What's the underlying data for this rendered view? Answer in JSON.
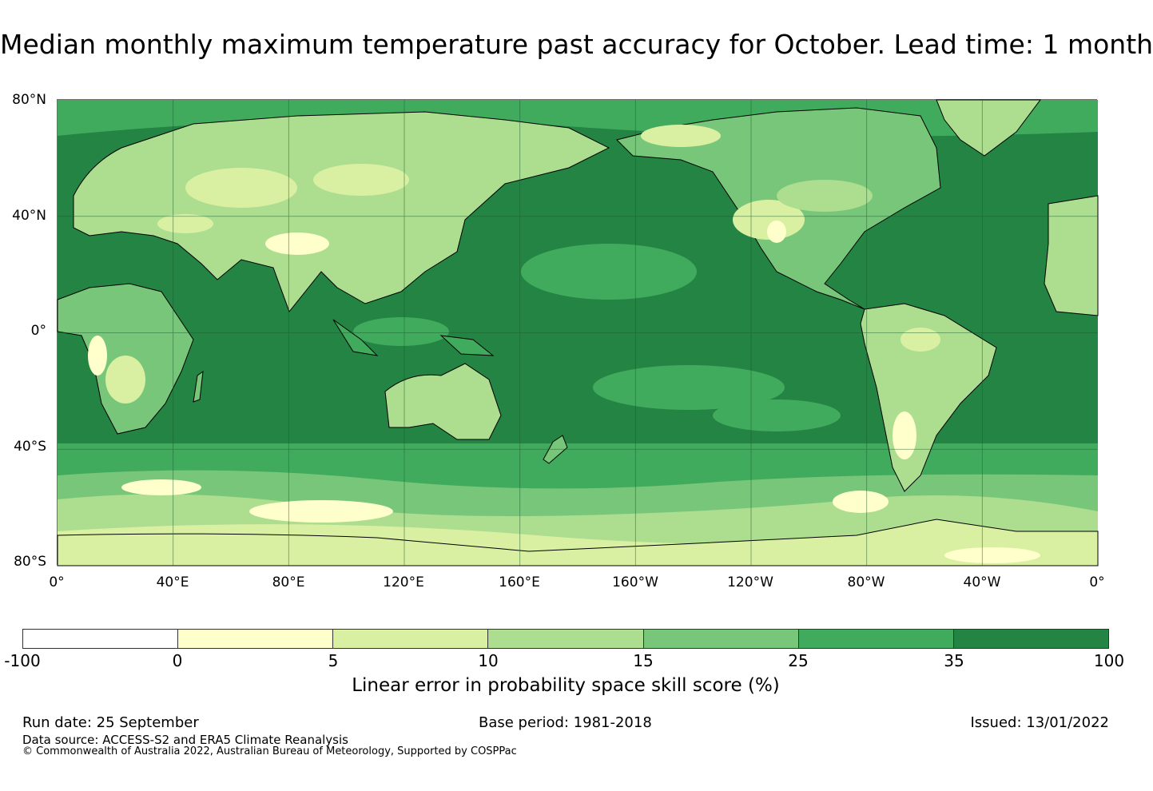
{
  "title": "Median monthly maximum temperature past accuracy for October. Lead time: 1 month",
  "map": {
    "latitude_labels": [
      "80°N",
      "40°N",
      "0°",
      "40°S",
      "80°S"
    ],
    "longitude_labels": [
      "0°",
      "40°E",
      "80°E",
      "120°E",
      "160°E",
      "160°W",
      "120°W",
      "80°W",
      "40°W",
      "0°"
    ],
    "graticule": true,
    "coastlines": true
  },
  "colorbar": {
    "label": "Linear error in probability space skill score (%)",
    "ticks": [
      "-100",
      "0",
      "5",
      "10",
      "15",
      "25",
      "35",
      "100"
    ],
    "colors": [
      "#ffffff",
      "#ffffcc",
      "#d9f0a3",
      "#addd8e",
      "#78c679",
      "#41ab5d",
      "#238443"
    ]
  },
  "footer": {
    "run_date": "Run date: 25 September",
    "base_period": "Base period: 1981-2018",
    "issued": "Issued: 13/01/2022",
    "data_source": "Data source: ACCESS-S2 and ERA5 Climate Reanalysis",
    "copyright": "© Commonwealth of Australia 2022, Australian Bureau of Meteorology, Supported by COSPPac"
  }
}
